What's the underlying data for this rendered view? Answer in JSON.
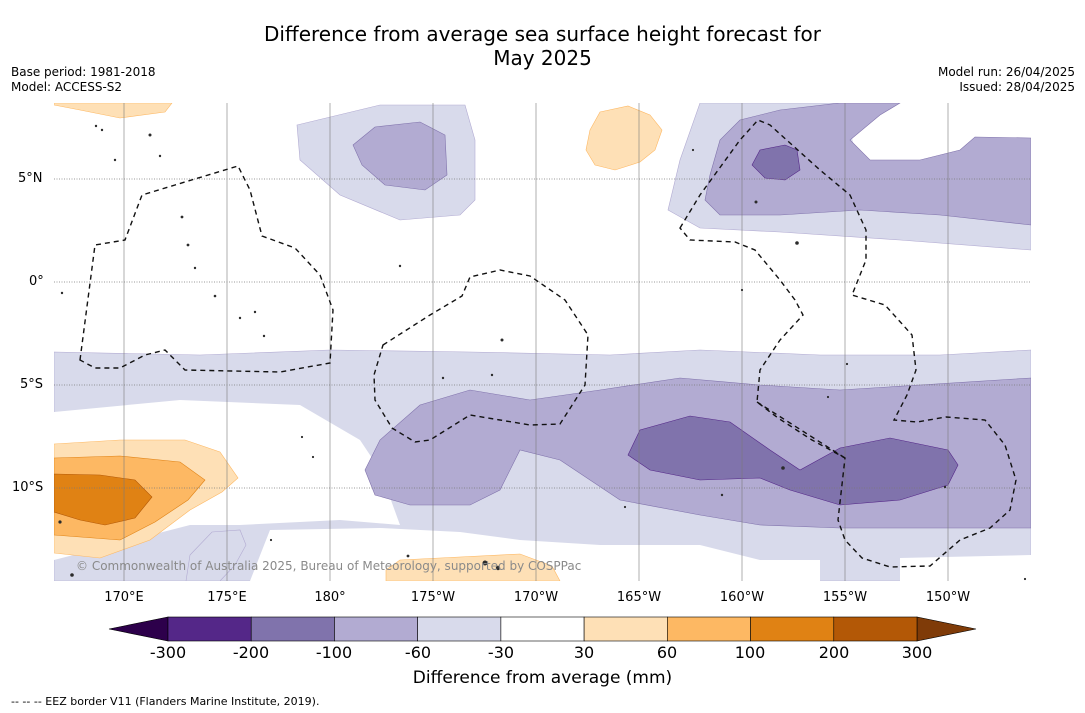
{
  "title_line1": "Difference from average sea surface height forecast for",
  "title_line2": "May 2025",
  "info_left": [
    "Base period: 1981-2018",
    "Model: ACCESS-S2"
  ],
  "info_right": [
    "Model run: 26/04/2025",
    "Issued: 28/04/2025"
  ],
  "lat_labels": [
    "5°N",
    "0°",
    "5°S",
    "10°S"
  ],
  "lon_labels": [
    "170°E",
    "175°E",
    "180°",
    "175°W",
    "170°W",
    "165°W",
    "160°W",
    "155°W",
    "150°W"
  ],
  "colorbar": {
    "ticks": [
      "-300",
      "-200",
      "-100",
      "-60",
      "-30",
      "30",
      "60",
      "100",
      "200",
      "300"
    ],
    "colors": [
      "#542788",
      "#8073ac",
      "#b2abd2",
      "#d8daeb",
      "#ffffff",
      "#fee0b6",
      "#fdb863",
      "#e08214",
      "#b35806"
    ],
    "under_color": "#2d004b",
    "over_color": "#7f3b08",
    "title": "Difference from average (mm)"
  },
  "copyright": "© Commonwealth of Australia 2025, Bureau of Meteorology, supported by COSPPac",
  "eez_note": "--  --  -- EEZ border V11 (Flanders Marine Institute, 2019)."
}
